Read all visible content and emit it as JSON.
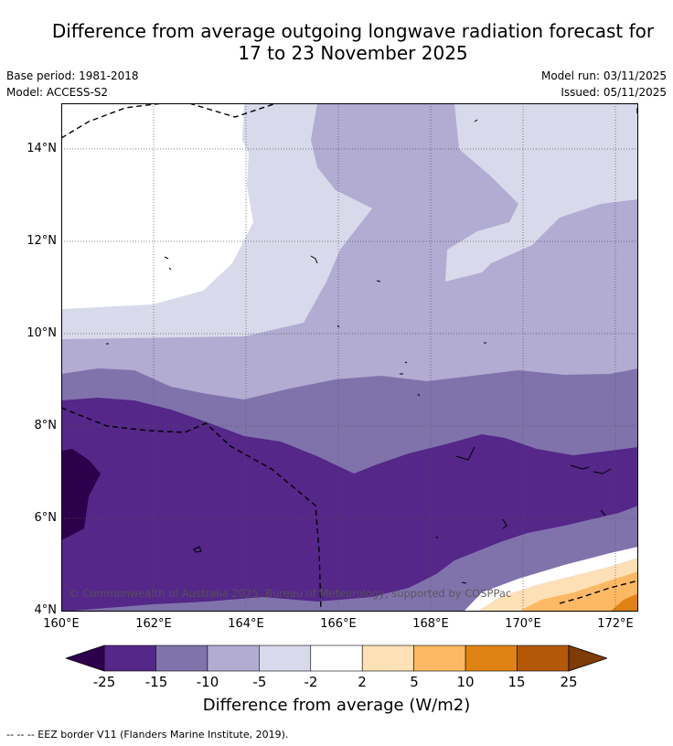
{
  "title": {
    "line1": "Difference from average outgoing longwave radiation forecast for",
    "line2": "17 to 23 November 2025"
  },
  "meta": {
    "base_period": "Base period: 1981-2018",
    "model": "Model: ACCESS-S2",
    "model_run": "Model run: 03/11/2025",
    "issued": "Issued: 05/11/2025"
  },
  "map": {
    "y_ticks": [
      "14°N",
      "12°N",
      "10°N",
      "8°N",
      "6°N",
      "4°N"
    ],
    "x_ticks": [
      "160°E",
      "162°E",
      "164°E",
      "166°E",
      "168°E",
      "170°E",
      "172°E"
    ],
    "copyright": "© Commonwealth of Australia 2025, Bureau of Meteorology, supported by COSPPac"
  },
  "colorbar": {
    "labels": [
      "-25",
      "-15",
      "-10",
      "-5",
      "-2",
      "2",
      "5",
      "10",
      "15",
      "25"
    ],
    "colors": [
      "#2d004b",
      "#542788",
      "#8073ac",
      "#b2abd2",
      "#d8daeb",
      "#ffffff",
      "#fee0b6",
      "#fdb863",
      "#e08214",
      "#b35806",
      "#7f3b08"
    ],
    "title": "Difference from average (W/m2)"
  },
  "footer": "--  --  -- EEZ border V11 (Flanders Marine Institute, 2019)."
}
